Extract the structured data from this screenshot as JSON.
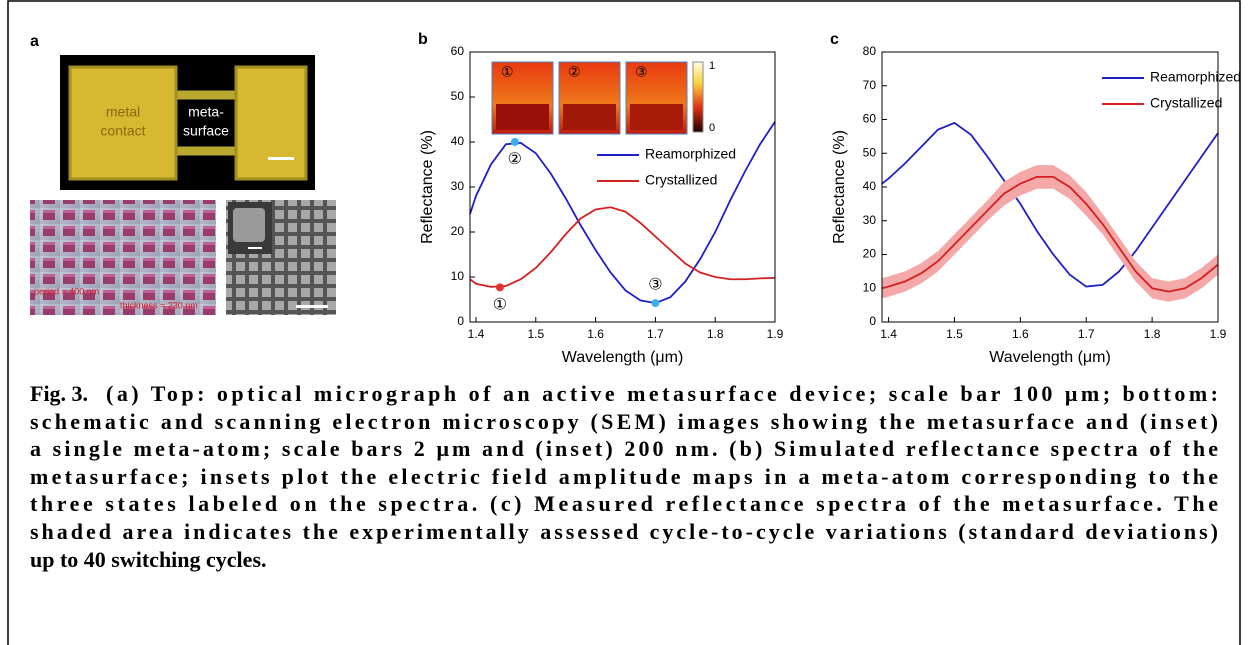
{
  "panel_a": {
    "label": "a",
    "contact": [
      "metal",
      "contact"
    ],
    "metasurface": [
      "meta-",
      "surface"
    ],
    "period": "period = 400 nm",
    "thickness": "thickness = 230 nm"
  },
  "chart_data": [
    {
      "type": "line",
      "label": "b",
      "x_label": "Wavelength (μm)",
      "y_label": "Reflectance (%)",
      "x": [
        1.39,
        1.4,
        1.425,
        1.45,
        1.475,
        1.5,
        1.525,
        1.55,
        1.575,
        1.6,
        1.625,
        1.65,
        1.675,
        1.7,
        1.725,
        1.75,
        1.775,
        1.8,
        1.825,
        1.85,
        1.875,
        1.9
      ],
      "series": [
        {
          "name": "Reamorphized",
          "color": "#1f1fc8",
          "values": [
            24,
            28,
            35,
            39.5,
            39.8,
            37.5,
            33,
            27.5,
            21.5,
            16,
            11,
            7,
            4.8,
            4.2,
            5.5,
            9,
            14,
            20,
            27,
            33.5,
            39.5,
            44.5
          ]
        },
        {
          "name": "Crystallized",
          "color": "#d42020",
          "values": [
            9.5,
            8.5,
            7.8,
            8,
            9.5,
            12,
            15.5,
            19.5,
            23,
            25,
            25.5,
            24.5,
            22,
            19,
            16,
            13,
            11,
            10,
            9.5,
            9.5,
            9.7,
            9.8
          ]
        }
      ],
      "points": [
        {
          "label": "①",
          "x": 1.44,
          "y": 7.7,
          "color": "#e8322b"
        },
        {
          "label": "②",
          "x": 1.465,
          "y": 40,
          "color": "#3ab0e8"
        },
        {
          "label": "③",
          "x": 1.7,
          "y": 4.2,
          "color": "#3ab0e8"
        }
      ],
      "insets": [
        "①",
        "②",
        "③"
      ],
      "colorbar_ticks": [
        1,
        0
      ],
      "xlim": [
        1.39,
        1.9
      ],
      "xticks": [
        1.4,
        1.5,
        1.6,
        1.7,
        1.8,
        1.9
      ],
      "ylim": [
        0,
        60
      ],
      "yticks": [
        0,
        10,
        20,
        30,
        40,
        50,
        60
      ]
    },
    {
      "type": "line",
      "label": "c",
      "x_label": "Wavelength (μm)",
      "y_label": "Reflectance (%)",
      "x": [
        1.39,
        1.4,
        1.425,
        1.45,
        1.475,
        1.5,
        1.525,
        1.55,
        1.575,
        1.6,
        1.625,
        1.65,
        1.675,
        1.7,
        1.725,
        1.75,
        1.775,
        1.8,
        1.825,
        1.85,
        1.875,
        1.9
      ],
      "series": [
        {
          "name": "Reamorphized",
          "color": "#1f1fc8",
          "values": [
            41,
            42.5,
            47,
            52,
            57,
            59,
            55.5,
            49,
            42,
            35,
            27,
            20,
            14,
            10.5,
            11,
            15,
            21,
            28,
            35,
            42,
            49,
            56
          ]
        },
        {
          "name": "Crystallized",
          "color": "#d42020",
          "band_color": "#f4a8a8",
          "values": [
            10,
            10.5,
            12,
            14.5,
            18,
            23,
            28,
            33,
            38,
            41,
            43,
            43,
            40,
            35,
            29,
            22,
            15,
            10,
            9,
            10,
            13,
            17
          ],
          "errors": [
            3,
            3,
            3,
            3,
            3,
            3,
            3,
            3,
            3.5,
            3.5,
            3.5,
            3.5,
            3.5,
            3.5,
            3,
            3,
            3,
            3,
            3,
            3,
            3,
            3
          ]
        }
      ],
      "xlim": [
        1.39,
        1.9
      ],
      "xticks": [
        1.4,
        1.5,
        1.6,
        1.7,
        1.8,
        1.9
      ],
      "ylim": [
        0,
        80
      ],
      "yticks": [
        0,
        10,
        20,
        30,
        40,
        50,
        60,
        70,
        80
      ]
    }
  ],
  "caption": {
    "label": "Fig. 3.",
    "lines": [
      "(a) Top: optical micrograph of an active metasurface device; scale bar 100 μm; bottom:",
      "schematic and scanning electron microscopy (SEM) images showing the metasurface and (inset)",
      "a single meta-atom; scale bars 2 μm and (inset) 200 nm. (b) Simulated reflectance spectra of the",
      "metasurface; insets plot the electric field amplitude maps in a meta-atom corresponding to the",
      "three states labeled on the spectra. (c) Measured reflectance spectra of the metasurface. The",
      "shaded area indicates the experimentally assessed cycle-to-cycle variations (standard deviations)",
      "up to 40 switching cycles."
    ]
  }
}
